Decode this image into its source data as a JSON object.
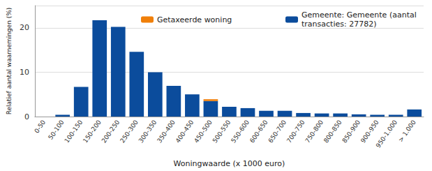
{
  "chart_data": {
    "type": "bar",
    "x_label": "Woningwaarde (x 1000 euro)",
    "y_label": "Relatief aantal waarnemingen (%)",
    "categories": [
      "0-50",
      "50-100",
      "100-150",
      "150-200",
      "200-250",
      "250-300",
      "300-350",
      "350-400",
      "400-450",
      "450-500",
      "500-550",
      "550-600",
      "600-650",
      "650-700",
      "700-750",
      "750-800",
      "800-850",
      "850-900",
      "900-950",
      "950-1.000",
      "> 1.000"
    ],
    "series": [
      {
        "name": "Getaxeerde woning",
        "color": "#f07f09",
        "values": [
          null,
          null,
          null,
          null,
          null,
          null,
          null,
          null,
          null,
          0.4,
          null,
          null,
          null,
          null,
          null,
          null,
          null,
          null,
          null,
          null,
          null
        ]
      },
      {
        "name": "Gemeente: Gemeente (aantal transacties: 27782)",
        "color": "#0b4c9c",
        "values": [
          0,
          0.4,
          6.7,
          21.7,
          20.2,
          14.6,
          10.0,
          6.9,
          5.0,
          3.5,
          2.2,
          1.9,
          1.3,
          1.3,
          0.8,
          0.7,
          0.7,
          0.5,
          0.4,
          0.4,
          1.6
        ]
      }
    ],
    "stacked": true,
    "ylim": [
      0,
      25
    ],
    "yticks": [
      0,
      10,
      20
    ],
    "grid": true,
    "legend": "upper right"
  }
}
